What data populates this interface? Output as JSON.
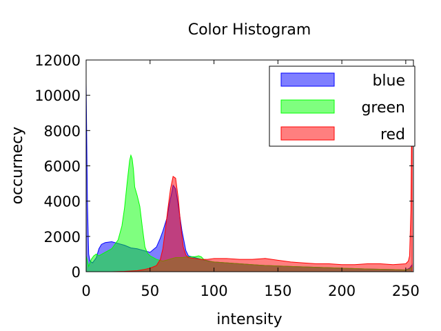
{
  "chart_data": {
    "type": "area",
    "title": "Color Histogram",
    "xlabel": "intensity",
    "ylabel": "occurnecy",
    "xlim": [
      0,
      256
    ],
    "ylim": [
      0,
      12000
    ],
    "xticks": [
      0,
      50,
      100,
      150,
      200,
      250
    ],
    "yticks": [
      0,
      2000,
      4000,
      6000,
      8000,
      10000,
      12000
    ],
    "grid": false,
    "legend_position": "top-right",
    "series": [
      {
        "name": "blue",
        "color": "#0000ff",
        "x": [
          0,
          1,
          2,
          3,
          5,
          8,
          10,
          12,
          15,
          20,
          25,
          30,
          35,
          40,
          45,
          50,
          55,
          58,
          60,
          63,
          65,
          67,
          68,
          70,
          72,
          75,
          78,
          80,
          85,
          90,
          100,
          120,
          140,
          160,
          180,
          200,
          220,
          240,
          250,
          253,
          254,
          255
        ],
        "y": [
          10700,
          4000,
          1000,
          600,
          500,
          800,
          1300,
          1550,
          1650,
          1700,
          1600,
          1500,
          1350,
          1300,
          1200,
          1100,
          1400,
          1900,
          2300,
          3000,
          3800,
          4500,
          4900,
          4700,
          3800,
          2300,
          1200,
          900,
          800,
          700,
          550,
          450,
          350,
          300,
          250,
          200,
          150,
          120,
          100,
          200,
          300,
          400
        ]
      },
      {
        "name": "green",
        "color": "#00ff00",
        "x": [
          0,
          2,
          4,
          6,
          8,
          10,
          15,
          20,
          25,
          28,
          30,
          32,
          34,
          35,
          36,
          37,
          38,
          40,
          42,
          44,
          46,
          48,
          50,
          55,
          60,
          65,
          70,
          75,
          80,
          85,
          88,
          90,
          92,
          95,
          100,
          120,
          140,
          160,
          180,
          200,
          220,
          240,
          250,
          253,
          254,
          255
        ],
        "y": [
          900,
          300,
          700,
          900,
          1000,
          900,
          1100,
          1300,
          1800,
          2600,
          3600,
          5000,
          6300,
          6600,
          6400,
          5800,
          4800,
          4300,
          3700,
          2500,
          1400,
          1050,
          900,
          700,
          600,
          700,
          800,
          800,
          850,
          850,
          900,
          850,
          700,
          600,
          550,
          450,
          350,
          300,
          250,
          200,
          150,
          120,
          100,
          150,
          200,
          300
        ]
      },
      {
        "name": "red",
        "color": "#ff0000",
        "x": [
          0,
          10,
          20,
          30,
          40,
          45,
          50,
          55,
          58,
          60,
          62,
          64,
          66,
          68,
          70,
          72,
          74,
          76,
          78,
          80,
          85,
          90,
          95,
          100,
          110,
          120,
          130,
          140,
          150,
          160,
          170,
          180,
          190,
          200,
          210,
          220,
          230,
          240,
          250,
          252,
          253,
          254,
          255
        ],
        "y": [
          0,
          0,
          0,
          20,
          60,
          120,
          200,
          350,
          700,
          1300,
          2400,
          3600,
          4700,
          5400,
          5300,
          4200,
          2600,
          1400,
          950,
          800,
          750,
          700,
          700,
          750,
          750,
          700,
          700,
          750,
          650,
          550,
          500,
          450,
          450,
          400,
          400,
          450,
          450,
          400,
          450,
          600,
          900,
          3500,
          11300
        ]
      }
    ]
  }
}
